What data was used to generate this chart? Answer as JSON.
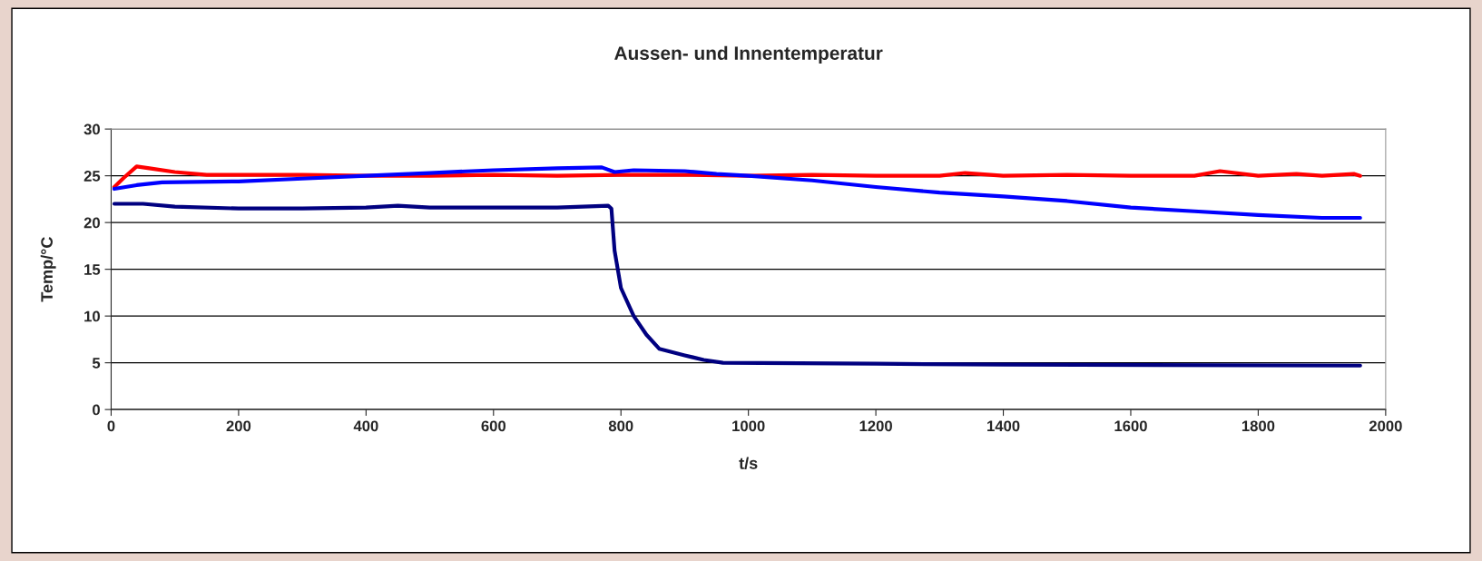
{
  "chart_data": {
    "type": "line",
    "title": "Aussen- und Innentemperatur",
    "xlabel": "t/s",
    "ylabel": "Temp/°C",
    "xlim": [
      0,
      2000
    ],
    "xticks": [
      0,
      200,
      400,
      600,
      800,
      1000,
      1200,
      1400,
      1600,
      1800,
      2000
    ],
    "ylim": [
      0,
      30
    ],
    "yticks": [
      0,
      5,
      10,
      15,
      20,
      25,
      30
    ],
    "grid": "y",
    "legend": false,
    "marker": "none",
    "line_style": "solid",
    "series": [
      {
        "color": "#ff0000",
        "x": [
          5,
          20,
          40,
          60,
          100,
          150,
          200,
          300,
          400,
          500,
          600,
          700,
          800,
          900,
          1000,
          1100,
          1200,
          1300,
          1340,
          1400,
          1500,
          1600,
          1700,
          1740,
          1800,
          1860,
          1900,
          1950,
          1960
        ],
        "values": [
          23.8,
          24.8,
          26.0,
          25.8,
          25.4,
          25.1,
          25.1,
          25.1,
          25.0,
          25.0,
          25.1,
          25.0,
          25.1,
          25.1,
          25.0,
          25.1,
          25.0,
          25.0,
          25.3,
          25.0,
          25.1,
          25.0,
          25.0,
          25.5,
          25.0,
          25.2,
          25.0,
          25.2,
          25.0
        ]
      },
      {
        "color": "#0000ff",
        "x": [
          5,
          40,
          80,
          200,
          300,
          400,
          500,
          600,
          700,
          770,
          790,
          820,
          900,
          950,
          1000,
          1100,
          1200,
          1300,
          1400,
          1500,
          1600,
          1700,
          1800,
          1900,
          1960
        ],
        "values": [
          23.6,
          24.0,
          24.3,
          24.4,
          24.7,
          25.0,
          25.3,
          25.6,
          25.8,
          25.9,
          25.4,
          25.6,
          25.5,
          25.2,
          25.0,
          24.5,
          23.8,
          23.2,
          22.8,
          22.3,
          21.6,
          21.2,
          20.8,
          20.5,
          20.5
        ]
      },
      {
        "color": "#000080",
        "x": [
          5,
          50,
          100,
          200,
          300,
          400,
          450,
          500,
          700,
          780,
          785,
          790,
          800,
          820,
          840,
          860,
          900,
          930,
          960,
          1200,
          1400,
          1960
        ],
        "values": [
          22.0,
          22.0,
          21.7,
          21.5,
          21.5,
          21.6,
          21.8,
          21.6,
          21.6,
          21.8,
          21.5,
          17.0,
          13.0,
          10.0,
          8.0,
          6.5,
          5.8,
          5.3,
          5.0,
          4.9,
          4.8,
          4.7
        ]
      }
    ]
  }
}
